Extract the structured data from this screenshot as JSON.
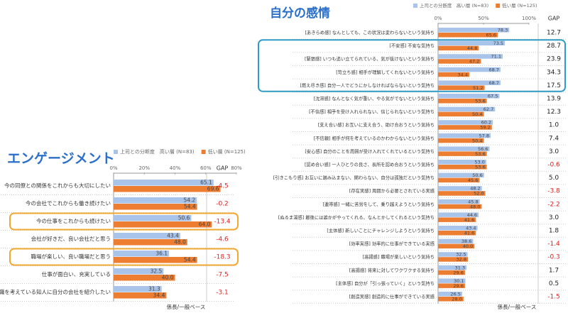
{
  "chart_data": [
    {
      "type": "bar",
      "orientation": "horizontal",
      "title": "エンゲージメント",
      "categories": [
        "今の同僚との関係をこれからも大切にしたい",
        "今の会社でこれからも働き続けたい",
        "今の仕事をこれからも続けたい",
        "会社が好きだ、良い会社だと思う",
        "職場が楽しい、良い職場だと思う",
        "仕事が面白い、充実している",
        "転職を考えている知人に自分の会社を紹介したい"
      ],
      "series": [
        {
          "name": "上司との分断度　高い層 (N=83)",
          "color": "#a9c4eb",
          "values": [
            65.1,
            54.2,
            50.6,
            43.4,
            36.1,
            32.5,
            31.3
          ],
          "value_labels": [
            "65.1",
            "54.2",
            "50.6",
            "43.4",
            "36.1",
            "32.5",
            "31.3"
          ]
        },
        {
          "name": "低い層 (N=125)",
          "color": "#ed7d31",
          "values": [
            69.6,
            54.4,
            64.0,
            48.0,
            54.4,
            40.0,
            34.4
          ],
          "value_labels": [
            "69.6",
            "54.4",
            "64.0",
            "48.0",
            "54.4",
            "40.0",
            "34.4"
          ]
        }
      ],
      "gap_header": "GAP",
      "gap": [
        -4.5,
        -0.2,
        -13.4,
        -4.6,
        -18.3,
        -7.5,
        -3.1
      ],
      "gap_labels": [
        "-4.5",
        "-0.2",
        "-13.4",
        "-4.6",
        "-18.3",
        "-7.5",
        "-3.1"
      ],
      "xlim": [
        0,
        80
      ],
      "xticks": [
        {
          "value": 0,
          "label": "0%"
        },
        {
          "value": 20,
          "label": "20%"
        },
        {
          "value": 40,
          "label": "40%"
        },
        {
          "value": 60,
          "label": "60%"
        },
        {
          "value": 80,
          "label": "80%"
        }
      ],
      "note": "係長/一般ベース"
    },
    {
      "type": "bar",
      "orientation": "horizontal",
      "title": "自分の感情",
      "categories": [
        "[あきらめ感] なんとしても、この状況は変わらないという気持ち",
        "[不安感] 不安な気持ち",
        "[緊張感] いつも追い立てられている、気が抜けないという気持ち",
        "[苛立ち感] 相手が理解してくれないという気持ち",
        "[燃え尽き感] 自分一人でどうにかしなければならないという気持ち",
        "[沈滞感] なんとなく気が重い、やる気がでないという気持ち",
        "[不信感] 相手を受け入れられない、信じられないという気持ち",
        "[支え合い感] お互いに支え合う、助け合おうという気持ち",
        "[不信頼] 相手が何を考えているのかわからないという気持ち",
        "[安心感] 自分のことを周囲が受け入れてくれているという気持ち",
        "[認め合い感] 一人ひとりの良さ、長所を認め合おうという気持ち",
        "[引きこもり感] お互いに踏み込まない、関わらない、自分は孤独だという気持ち",
        "[存在実感] 周囲から必要とされている実感",
        "[連帯感] 一緒に苦労をして、乗り越えようという気持ち",
        "[ぬるま湯感] 最後には誰かがやってくれる、なんとかしてくれるという気持ち",
        "[主体感] 新しいことにチャレンジしようという気持ち",
        "[効率実感] 効率的に仕事ができている実感",
        "[高揚感] 職場が楽しいという気持ち",
        "[高揚感] 将来に対してワクワクする気持ち",
        "[主体感] 自分が「引っ張っていく」という気持ち",
        "[創造実感] 創造的に仕事ができている実感"
      ],
      "series": [
        {
          "name": "上司との分断度　高い層 (N=83)",
          "color": "#a9c4eb",
          "values": [
            78.3,
            73.5,
            71.1,
            68.7,
            68.7,
            67.5,
            62.7,
            60.2,
            57.8,
            56.6,
            53.0,
            50.6,
            48.2,
            45.8,
            44.6,
            43.4,
            38.6,
            32.5,
            31.3,
            30.1,
            26.5
          ],
          "value_labels": [
            "78.3",
            "73.5",
            "71.1",
            "68.7",
            "68.7",
            "67.5",
            "62.7",
            "60.2",
            "57.8",
            "56.6",
            "53.0",
            "50.6",
            "48.2",
            "45.8",
            "44.6",
            "43.4",
            "38.6",
            "32.5",
            "31.3",
            "30.1",
            "26.5"
          ]
        },
        {
          "name": "低い層 (N=125)",
          "color": "#ed7d31",
          "values": [
            65.6,
            44.8,
            47.2,
            34.4,
            51.2,
            53.6,
            50.4,
            59.2,
            50.4,
            53.6,
            53.6,
            45.6,
            52.0,
            48.0,
            41.6,
            41.6,
            40.0,
            32.8,
            29.6,
            29.6,
            28.0
          ],
          "value_labels": [
            "65.6",
            "44.8",
            "47.2",
            "34.4",
            "51.2",
            "53.6",
            "50.4",
            "59.2",
            "50.4",
            "53.6",
            "53.6",
            "45.6",
            "52.0",
            "48.0",
            "41.6",
            "41.6",
            "40.0",
            "32.8",
            "29.6",
            "29.6",
            "28.0"
          ]
        }
      ],
      "gap_header": "GAP",
      "gap": [
        12.7,
        28.7,
        23.9,
        34.3,
        17.5,
        13.9,
        12.3,
        1.0,
        7.4,
        3.0,
        -0.6,
        5.0,
        -3.8,
        -2.2,
        3.0,
        1.8,
        -1.4,
        -0.3,
        1.7,
        0.5,
        -1.5
      ],
      "gap_labels": [
        "12.7",
        "28.7",
        "23.9",
        "34.3",
        "17.5",
        "13.9",
        "12.3",
        "1.0",
        "7.4",
        "3.0",
        "-0.6",
        "5.0",
        "-3.8",
        "-2.2",
        "3.0",
        "1.8",
        "-1.4",
        "-0.3",
        "1.7",
        "0.5",
        "-1.5"
      ],
      "xlim": [
        0,
        100
      ],
      "xticks": [
        {
          "value": 0,
          "label": "0%"
        },
        {
          "value": 50,
          "label": "50%"
        },
        {
          "value": 100,
          "label": "100%"
        }
      ],
      "note": "係長/一般ベース"
    }
  ]
}
